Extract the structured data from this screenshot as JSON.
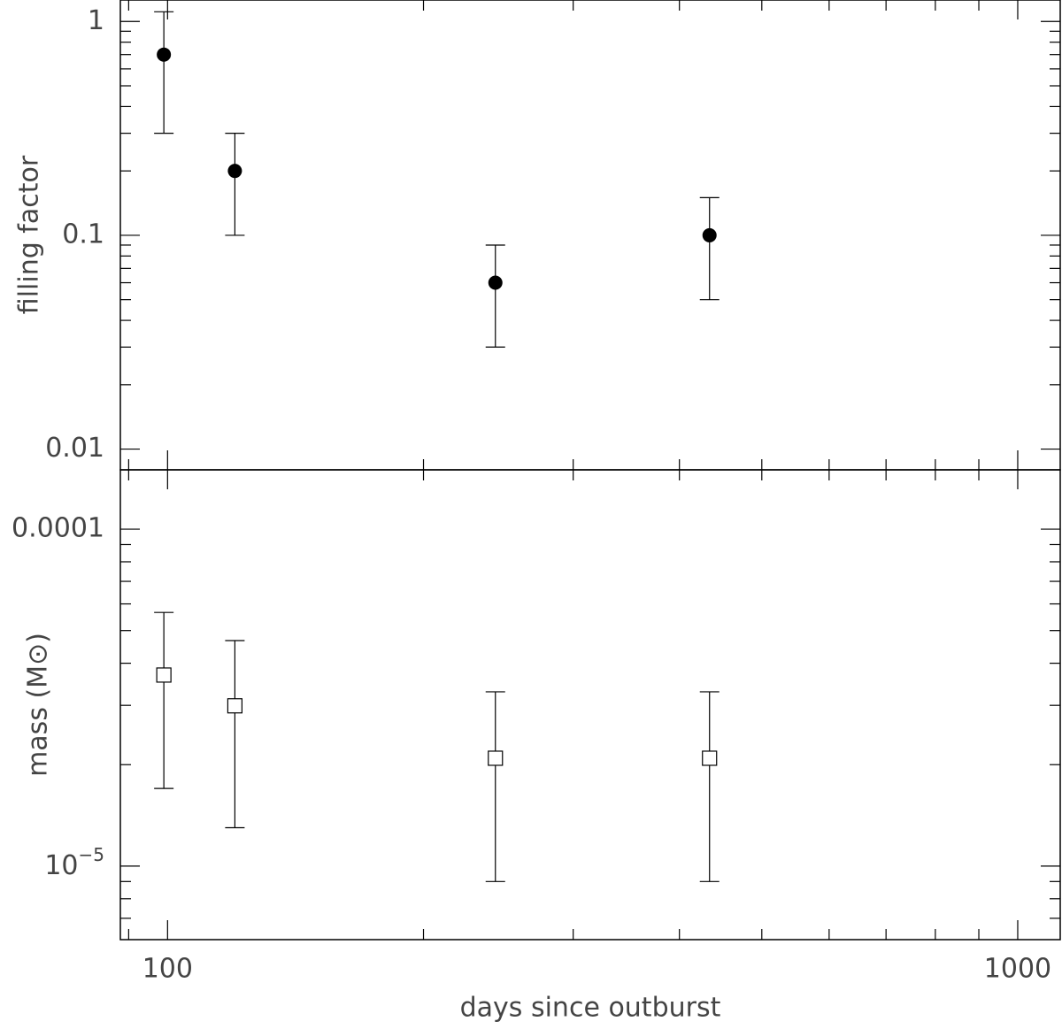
{
  "chart_data": [
    {
      "type": "scatter",
      "ylabel": "filling factor",
      "x": [
        99,
        120,
        243,
        434
      ],
      "xscale": "log",
      "xlim": [
        88,
        1122
      ],
      "xticks": [
        100,
        1000
      ],
      "minor_xticks": [
        90,
        200,
        300,
        400,
        500,
        600,
        700,
        800,
        900
      ],
      "xtick_labels": false,
      "yscale": "log",
      "ylim": [
        0.008,
        1.26
      ],
      "yticks": [
        0.01,
        0.1,
        1
      ],
      "minor_yticks": [
        0.02,
        0.03,
        0.04,
        0.05,
        0.06,
        0.07,
        0.08,
        0.09,
        0.2,
        0.3,
        0.4,
        0.5,
        0.6,
        0.7,
        0.8,
        0.9
      ],
      "series": [
        {
          "marker": "filled-circle",
          "color": "#000000",
          "values": [
            0.7,
            0.2,
            0.06,
            0.1
          ],
          "lower": [
            0.3,
            0.1,
            0.03,
            0.05
          ],
          "upper": [
            1.11,
            0.3,
            0.09,
            0.15
          ]
        }
      ]
    },
    {
      "type": "scatter",
      "xlabel": "days since outburst",
      "ylabel": "mass (M⊙)",
      "x": [
        99,
        120,
        243,
        434
      ],
      "xscale": "log",
      "xlim": [
        88,
        1122
      ],
      "xticks": [
        100,
        1000
      ],
      "minor_xticks": [
        90,
        200,
        300,
        400,
        500,
        600,
        700,
        800,
        900
      ],
      "xtick_labels": true,
      "yscale": "log",
      "ylim": [
        6.05e-06,
        0.00015
      ],
      "yticks": [
        {
          "value": 1e-05,
          "label": "10",
          "exponent": "−5"
        },
        0.0001
      ],
      "minor_yticks": [
        7e-06,
        8e-06,
        9e-06,
        2e-05,
        3e-05,
        4e-05,
        5e-05,
        6e-05,
        7e-05,
        8e-05,
        9e-05
      ],
      "series": [
        {
          "marker": "open-square",
          "color": "#000000",
          "values": [
            3.69e-05,
            2.99e-05,
            2.09e-05,
            2.09e-05
          ],
          "lower": [
            1.7e-05,
            1.3e-05,
            9e-06,
            9e-06
          ],
          "upper": [
            5.66e-05,
            4.67e-05,
            3.29e-05,
            3.29e-05
          ]
        }
      ]
    }
  ]
}
